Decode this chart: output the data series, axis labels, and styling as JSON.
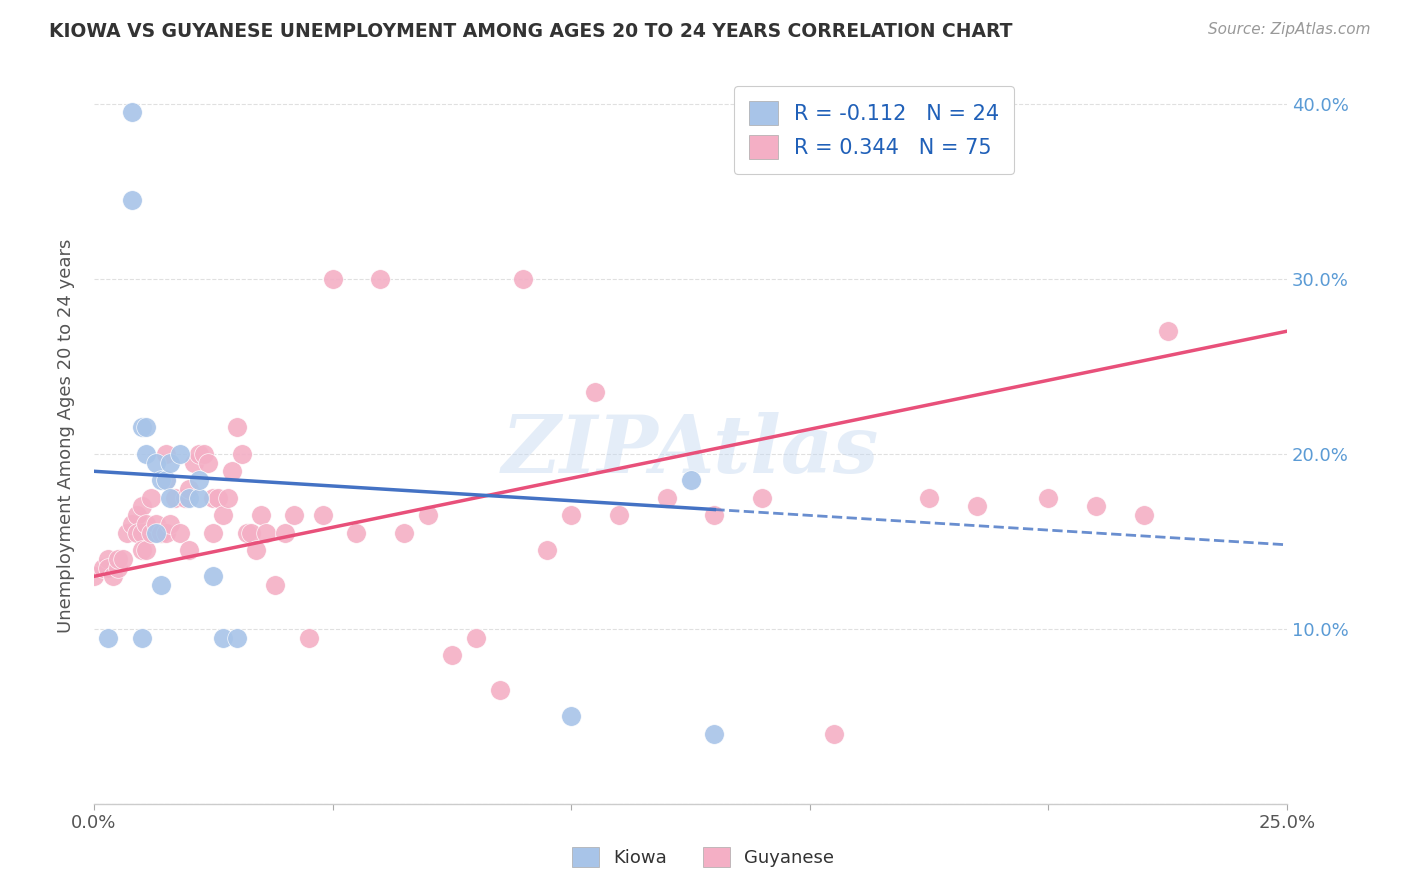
{
  "title": "KIOWA VS GUYANESE UNEMPLOYMENT AMONG AGES 20 TO 24 YEARS CORRELATION CHART",
  "source": "Source: ZipAtlas.com",
  "ylabel": "Unemployment Among Ages 20 to 24 years",
  "x_min": 0.0,
  "x_max": 0.25,
  "y_min": 0.0,
  "y_max": 0.42,
  "kiowa_R": -0.112,
  "kiowa_N": 24,
  "guyanese_R": 0.344,
  "guyanese_N": 75,
  "kiowa_color": "#a8c4e8",
  "guyanese_color": "#f4afc5",
  "kiowa_line_color": "#4472c4",
  "guyanese_line_color": "#e8507a",
  "legend_label_kiowa": "Kiowa",
  "legend_label_guyanese": "Guyanese",
  "watermark": "ZIPAtlas",
  "kiowa_x": [
    0.003,
    0.008,
    0.008,
    0.01,
    0.01,
    0.011,
    0.011,
    0.013,
    0.013,
    0.014,
    0.014,
    0.015,
    0.016,
    0.016,
    0.018,
    0.02,
    0.022,
    0.022,
    0.025,
    0.027,
    0.03,
    0.1,
    0.125,
    0.13
  ],
  "kiowa_y": [
    0.095,
    0.395,
    0.345,
    0.215,
    0.095,
    0.215,
    0.2,
    0.195,
    0.155,
    0.185,
    0.125,
    0.185,
    0.195,
    0.175,
    0.2,
    0.175,
    0.175,
    0.185,
    0.13,
    0.095,
    0.095,
    0.05,
    0.185,
    0.04
  ],
  "guyanese_x": [
    0.0,
    0.002,
    0.003,
    0.003,
    0.004,
    0.005,
    0.005,
    0.006,
    0.007,
    0.008,
    0.009,
    0.009,
    0.01,
    0.01,
    0.01,
    0.011,
    0.011,
    0.012,
    0.012,
    0.013,
    0.014,
    0.015,
    0.015,
    0.015,
    0.016,
    0.017,
    0.018,
    0.019,
    0.02,
    0.02,
    0.021,
    0.022,
    0.023,
    0.024,
    0.025,
    0.025,
    0.026,
    0.027,
    0.028,
    0.029,
    0.03,
    0.031,
    0.032,
    0.033,
    0.034,
    0.035,
    0.036,
    0.038,
    0.04,
    0.042,
    0.045,
    0.048,
    0.05,
    0.055,
    0.06,
    0.065,
    0.07,
    0.075,
    0.08,
    0.085,
    0.09,
    0.095,
    0.1,
    0.105,
    0.11,
    0.12,
    0.13,
    0.14,
    0.155,
    0.175,
    0.185,
    0.2,
    0.21,
    0.22,
    0.225
  ],
  "guyanese_y": [
    0.13,
    0.135,
    0.14,
    0.135,
    0.13,
    0.135,
    0.14,
    0.14,
    0.155,
    0.16,
    0.165,
    0.155,
    0.155,
    0.17,
    0.145,
    0.16,
    0.145,
    0.175,
    0.155,
    0.16,
    0.155,
    0.2,
    0.185,
    0.155,
    0.16,
    0.175,
    0.155,
    0.175,
    0.145,
    0.18,
    0.195,
    0.2,
    0.2,
    0.195,
    0.155,
    0.175,
    0.175,
    0.165,
    0.175,
    0.19,
    0.215,
    0.2,
    0.155,
    0.155,
    0.145,
    0.165,
    0.155,
    0.125,
    0.155,
    0.165,
    0.095,
    0.165,
    0.3,
    0.155,
    0.3,
    0.155,
    0.165,
    0.085,
    0.095,
    0.065,
    0.3,
    0.145,
    0.165,
    0.235,
    0.165,
    0.175,
    0.165,
    0.175,
    0.04,
    0.175,
    0.17,
    0.175,
    0.17,
    0.165,
    0.27
  ],
  "kiowa_line_y0": 0.19,
  "kiowa_line_y1": 0.148,
  "kiowa_line_x_solid_end": 0.13,
  "guyanese_line_y0": 0.13,
  "guyanese_line_y1": 0.27,
  "background_color": "#ffffff",
  "grid_color": "#e0e0e0"
}
